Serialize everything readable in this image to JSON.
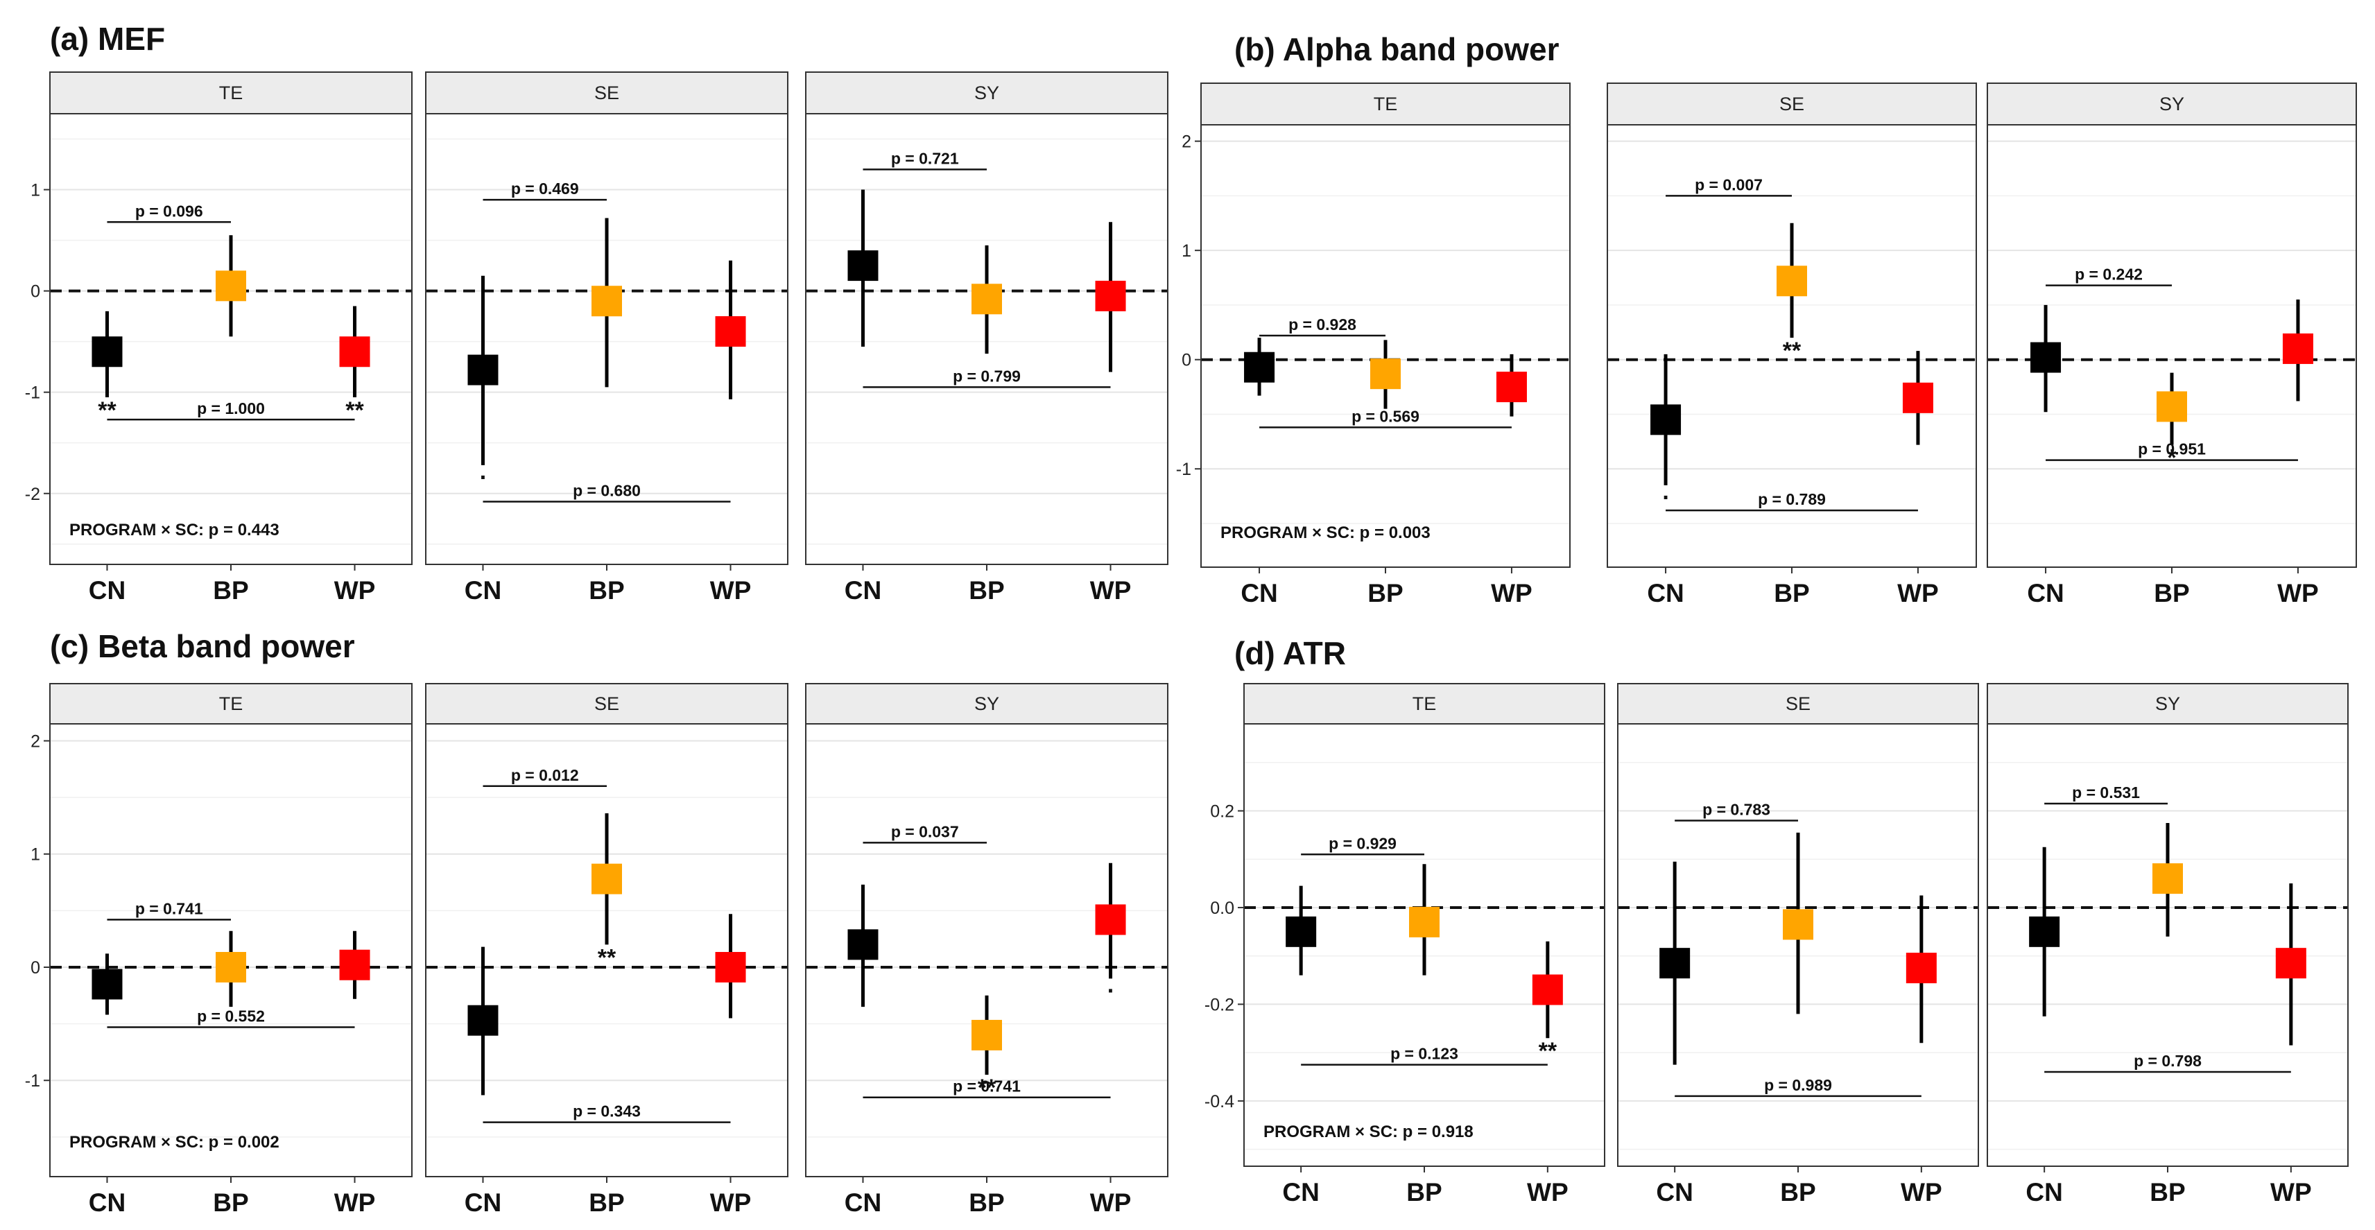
{
  "chart_data": [
    {
      "type": "point-range",
      "label": "(a)",
      "title": "MEF",
      "ylim": [
        -2.7,
        1.75
      ],
      "yticks": [
        -2,
        -1,
        0,
        1
      ],
      "categories": [
        "CN",
        "BP",
        "WP"
      ],
      "colors": [
        "#000000",
        "#FFA500",
        "#FF0000"
      ],
      "interaction": "PROGRAM × SC: p = 0.443",
      "facets": [
        {
          "name": "TE",
          "means": [
            -0.6,
            0.05,
            -0.6
          ],
          "lower": [
            -1.05,
            -0.45,
            -1.05
          ],
          "upper": [
            -0.2,
            0.55,
            -0.15
          ],
          "sig": [
            "**",
            "",
            "**"
          ],
          "brackets": [
            {
              "label": "p = 0.096",
              "y": 0.68,
              "from": 0,
              "to": 1
            },
            {
              "label": "p = 1.000",
              "y": -1.27,
              "from": 0,
              "to": 2
            }
          ]
        },
        {
          "name": "SE",
          "means": [
            -0.78,
            -0.1,
            -0.4
          ],
          "lower": [
            -1.72,
            -0.95,
            -1.07
          ],
          "upper": [
            0.15,
            0.72,
            0.3
          ],
          "sig": [
            ".",
            "",
            ""
          ],
          "brackets": [
            {
              "label": "p = 0.469",
              "y": 0.9,
              "from": 0,
              "to": 1
            },
            {
              "label": "p = 0.680",
              "y": -2.08,
              "from": 0,
              "to": 2
            }
          ]
        },
        {
          "name": "SY",
          "means": [
            0.25,
            -0.08,
            -0.05
          ],
          "lower": [
            -0.55,
            -0.62,
            -0.8
          ],
          "upper": [
            1.0,
            0.45,
            0.68
          ],
          "sig": [
            "",
            "",
            ""
          ],
          "brackets": [
            {
              "label": "p = 0.721",
              "y": 1.2,
              "from": 0,
              "to": 1
            },
            {
              "label": "p = 0.799",
              "y": -0.95,
              "from": 0,
              "to": 2
            }
          ]
        }
      ]
    },
    {
      "type": "point-range",
      "label": "(b)",
      "title": "Alpha band power",
      "ylim": [
        -1.9,
        2.15
      ],
      "yticks": [
        -1,
        0,
        1,
        2
      ],
      "categories": [
        "CN",
        "BP",
        "WP"
      ],
      "colors": [
        "#000000",
        "#FFA500",
        "#FF0000"
      ],
      "interaction": "PROGRAM × SC: p = 0.003",
      "facets": [
        {
          "name": "TE",
          "means": [
            -0.07,
            -0.13,
            -0.25
          ],
          "lower": [
            -0.33,
            -0.45,
            -0.52
          ],
          "upper": [
            0.2,
            0.18,
            0.05
          ],
          "sig": [
            "",
            "",
            ""
          ],
          "brackets": [
            {
              "label": "p = 0.928",
              "y": 0.22,
              "from": 0,
              "to": 1
            },
            {
              "label": "p = 0.569",
              "y": -0.62,
              "from": 0,
              "to": 2
            }
          ]
        },
        {
          "name": "SE",
          "means": [
            -0.55,
            0.72,
            -0.35
          ],
          "lower": [
            -1.15,
            0.2,
            -0.78
          ],
          "upper": [
            0.05,
            1.25,
            0.08
          ],
          "sig": [
            ".",
            "**",
            ""
          ],
          "brackets": [
            {
              "label": "p = 0.007",
              "y": 1.5,
              "from": 0,
              "to": 1
            },
            {
              "label": "p = 0.789",
              "y": -1.38,
              "from": 0,
              "to": 2
            }
          ]
        },
        {
          "name": "SY",
          "means": [
            0.02,
            -0.43,
            0.1
          ],
          "lower": [
            -0.48,
            -0.78,
            -0.38
          ],
          "upper": [
            0.5,
            -0.12,
            0.55
          ],
          "sig": [
            "",
            "*",
            ""
          ],
          "brackets": [
            {
              "label": "p = 0.242",
              "y": 0.68,
              "from": 0,
              "to": 1
            },
            {
              "label": "p = 0.951",
              "y": -0.92,
              "from": 0,
              "to": 2
            }
          ]
        }
      ]
    },
    {
      "type": "point-range",
      "label": "(c)",
      "title": "Beta band power",
      "ylim": [
        -1.85,
        2.15
      ],
      "yticks": [
        -1,
        0,
        1,
        2
      ],
      "categories": [
        "CN",
        "BP",
        "WP"
      ],
      "colors": [
        "#000000",
        "#FFA500",
        "#FF0000"
      ],
      "interaction": "PROGRAM × SC: p = 0.002",
      "facets": [
        {
          "name": "TE",
          "means": [
            -0.15,
            0.0,
            0.02
          ],
          "lower": [
            -0.42,
            -0.35,
            -0.28
          ],
          "upper": [
            0.12,
            0.32,
            0.32
          ],
          "sig": [
            "",
            "",
            ""
          ],
          "brackets": [
            {
              "label": "p = 0.741",
              "y": 0.42,
              "from": 0,
              "to": 1
            },
            {
              "label": "p = 0.552",
              "y": -0.53,
              "from": 0,
              "to": 2
            }
          ]
        },
        {
          "name": "SE",
          "means": [
            -0.47,
            0.78,
            0.0
          ],
          "lower": [
            -1.13,
            0.2,
            -0.45
          ],
          "upper": [
            0.18,
            1.36,
            0.47
          ],
          "sig": [
            "",
            "**",
            ""
          ],
          "brackets": [
            {
              "label": "p = 0.012",
              "y": 1.6,
              "from": 0,
              "to": 1
            },
            {
              "label": "p = 0.343",
              "y": -1.37,
              "from": 0,
              "to": 2
            }
          ]
        },
        {
          "name": "SY",
          "means": [
            0.2,
            -0.6,
            0.42
          ],
          "lower": [
            -0.35,
            -0.95,
            -0.1
          ],
          "upper": [
            0.73,
            -0.25,
            0.92
          ],
          "sig": [
            "",
            "**",
            "."
          ],
          "brackets": [
            {
              "label": "p = 0.037",
              "y": 1.1,
              "from": 0,
              "to": 1
            },
            {
              "label": "p = 0.741",
              "y": -1.15,
              "from": 0,
              "to": 2
            }
          ]
        }
      ]
    },
    {
      "type": "point-range",
      "label": "(d)",
      "title": "ATR",
      "ylim": [
        -0.535,
        0.38
      ],
      "yticks": [
        -0.4,
        -0.2,
        0.0,
        0.2
      ],
      "ytick_labels": [
        "-0.4",
        "-0.2",
        "0.0",
        "0.2"
      ],
      "categories": [
        "CN",
        "BP",
        "WP"
      ],
      "colors": [
        "#000000",
        "#FFA500",
        "#FF0000"
      ],
      "interaction": "PROGRAM × SC: p = 0.918",
      "facets": [
        {
          "name": "TE",
          "means": [
            -0.05,
            -0.03,
            -0.17
          ],
          "lower": [
            -0.14,
            -0.14,
            -0.27
          ],
          "upper": [
            0.045,
            0.09,
            -0.07
          ],
          "sig": [
            "",
            "",
            "**"
          ],
          "brackets": [
            {
              "label": "p = 0.929",
              "y": 0.11,
              "from": 0,
              "to": 1
            },
            {
              "label": "p = 0.123",
              "y": -0.325,
              "from": 0,
              "to": 2
            }
          ]
        },
        {
          "name": "SE",
          "means": [
            -0.115,
            -0.035,
            -0.125
          ],
          "lower": [
            -0.325,
            -0.22,
            -0.28
          ],
          "upper": [
            0.095,
            0.155,
            0.025
          ],
          "sig": [
            "",
            "",
            ""
          ],
          "brackets": [
            {
              "label": "p = 0.783",
              "y": 0.18,
              "from": 0,
              "to": 1
            },
            {
              "label": "p = 0.989",
              "y": -0.39,
              "from": 0,
              "to": 2
            }
          ]
        },
        {
          "name": "SY",
          "means": [
            -0.05,
            0.06,
            -0.115
          ],
          "lower": [
            -0.225,
            -0.06,
            -0.285
          ],
          "upper": [
            0.125,
            0.175,
            0.05
          ],
          "sig": [
            "",
            "",
            ""
          ],
          "brackets": [
            {
              "label": "p = 0.531",
              "y": 0.215,
              "from": 0,
              "to": 1
            },
            {
              "label": "p = 0.798",
              "y": -0.34,
              "from": 0,
              "to": 2
            }
          ]
        }
      ]
    }
  ]
}
